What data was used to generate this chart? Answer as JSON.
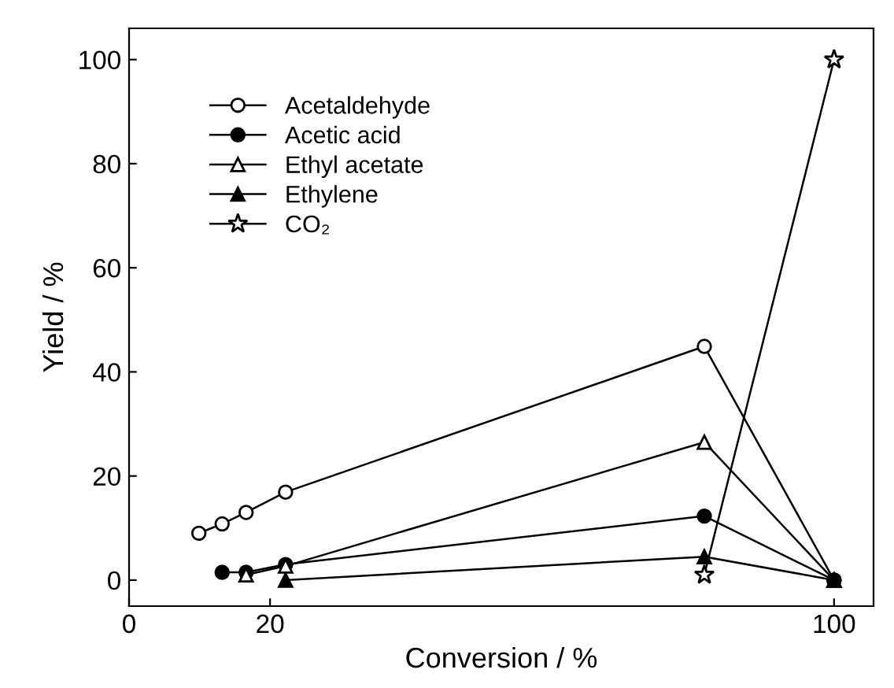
{
  "chart_data": {
    "type": "line",
    "xlabel": "Conversion / %",
    "ylabel": "Yield / %",
    "xlim": [
      0,
      105.6
    ],
    "xticks": [
      0,
      20,
      100
    ],
    "ylim": [
      -5,
      106
    ],
    "yticks": [
      0,
      20,
      40,
      60,
      80,
      100
    ],
    "legend": "top left",
    "series": [
      {
        "name": "Acetaldehyde",
        "color": "#000000",
        "marker": "circle",
        "x": [
          9.9,
          13.2,
          16.6,
          22.2,
          81.6,
          100
        ],
        "values": [
          9,
          10.8,
          13,
          16.9,
          44.9,
          0
        ]
      },
      {
        "name": "Acetic acid",
        "color": "#000000",
        "marker": "circle",
        "x": [
          13.2,
          16.6,
          22.2,
          81.6,
          100
        ],
        "values": [
          1.5,
          1.5,
          3,
          12.3,
          0
        ]
      },
      {
        "name": "Ethyl acetate",
        "color": "#000000",
        "marker": "triangle",
        "x": [
          16.6,
          22.2,
          81.6,
          100
        ],
        "values": [
          1,
          2.7,
          26.5,
          0
        ]
      },
      {
        "name": "Ethylene",
        "color": "#000000",
        "marker": "triangle",
        "x": [
          22.2,
          81.6,
          100
        ],
        "values": [
          0,
          4.5,
          0
        ]
      },
      {
        "name": "CO₂",
        "color": "#000000",
        "marker": "star",
        "x": [
          81.6,
          100
        ],
        "values": [
          1,
          100
        ]
      }
    ]
  }
}
